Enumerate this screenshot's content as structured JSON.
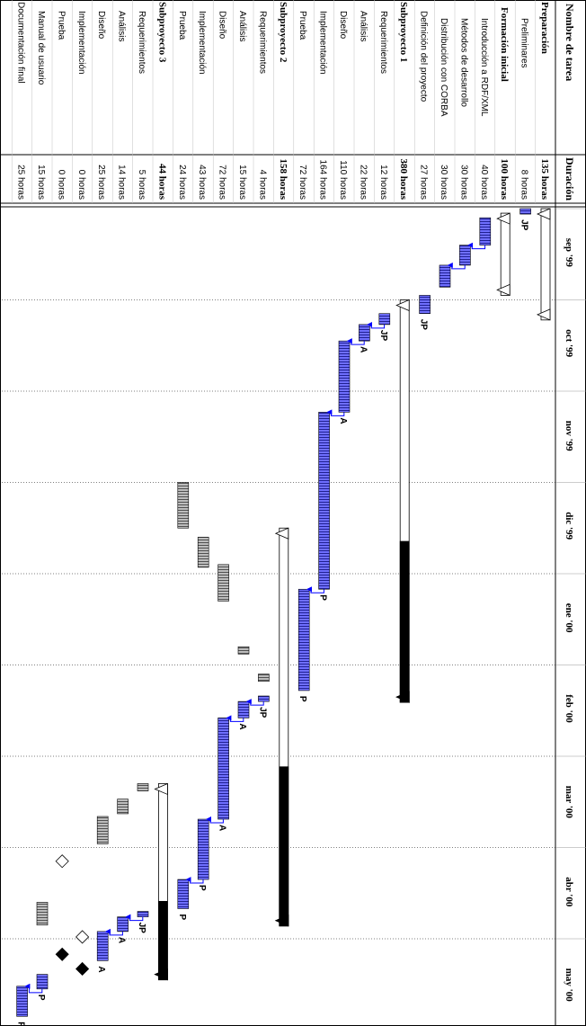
{
  "chart_data": {
    "type": "gantt",
    "columns": {
      "name": "Nombre de tarea",
      "duration": "Duración"
    },
    "months": [
      "sep '99",
      "oct '99",
      "nov '99",
      "dic '99",
      "ene '00",
      "feb '00",
      "mar '00",
      "abr '00",
      "may '00"
    ],
    "tasks": [
      {
        "name": "Preparación",
        "duration": "135 horas",
        "summary": true,
        "start": 0.0,
        "end": 1.22
      },
      {
        "name": "Preliminares",
        "duration": "8 horas",
        "level": 2,
        "start": 0.0,
        "end": 0.06,
        "resource": "JP"
      },
      {
        "name": "Formación inicial",
        "duration": "100 horas",
        "summary": true,
        "level": 1,
        "start": 0.05,
        "end": 0.95
      },
      {
        "name": "Introducción a RDF/XML",
        "duration": "40 horas",
        "level": 2,
        "start": 0.1,
        "end": 0.4
      },
      {
        "name": "Métodos de desarrollo",
        "duration": "30 horas",
        "level": 2,
        "start": 0.4,
        "end": 0.62
      },
      {
        "name": "Distribución con CORBA",
        "duration": "30 horas",
        "level": 2,
        "start": 0.62,
        "end": 0.86
      },
      {
        "name": "Definición del proyecto",
        "duration": "27 horas",
        "level": 1,
        "start": 0.95,
        "end": 1.15,
        "resource": "JP"
      },
      {
        "name": "Subproyecto 1",
        "duration": "380 horas",
        "summary": true,
        "start": 1.0,
        "end": 5.41
      },
      {
        "name": "Requerimientos",
        "duration": "12 horas",
        "level": 1,
        "start": 1.15,
        "end": 1.27,
        "resource": "JP"
      },
      {
        "name": "Análisis",
        "duration": "22 horas",
        "level": 1,
        "start": 1.27,
        "end": 1.45,
        "resource": "A"
      },
      {
        "name": "Diseño",
        "duration": "110 horas",
        "level": 1,
        "start": 1.45,
        "end": 2.23,
        "resource": "A"
      },
      {
        "name": "Implementación",
        "duration": "164 horas",
        "level": 1,
        "start": 2.23,
        "end": 4.17,
        "resource": "P"
      },
      {
        "name": "Prueba",
        "duration": "72 horas",
        "level": 1,
        "start": 4.17,
        "end": 5.28,
        "resource": "P"
      },
      {
        "name": "Subproyecto 2",
        "duration": "158 horas",
        "summary": true,
        "start": 3.5,
        "end": 7.86
      },
      {
        "name": "Requerimientos",
        "duration": "4 horas",
        "level": 1,
        "start": 5.34,
        "end": 5.4,
        "resource": "JP"
      },
      {
        "name": "Análisis",
        "duration": "15 horas",
        "level": 1,
        "start": 5.4,
        "end": 5.58,
        "resource": "A"
      },
      {
        "name": "Diseño",
        "duration": "72 horas",
        "level": 1,
        "start": 5.58,
        "end": 6.69,
        "resource": "A"
      },
      {
        "name": "Implementación",
        "duration": "43 horas",
        "level": 1,
        "start": 6.69,
        "end": 7.35,
        "resource": "P"
      },
      {
        "name": "Prueba",
        "duration": "24 horas",
        "level": 1,
        "start": 7.35,
        "end": 7.67,
        "resource": "P"
      },
      {
        "name": "Subproyecto 3",
        "duration": "44 horas",
        "summary": true,
        "start": 6.3,
        "end": 8.45
      },
      {
        "name": "Requerimientos",
        "duration": "5 horas",
        "level": 1,
        "start": 7.7,
        "end": 7.76,
        "resource": "JP"
      },
      {
        "name": "Análisis",
        "duration": "14 horas",
        "level": 1,
        "start": 7.76,
        "end": 7.92,
        "resource": "A"
      },
      {
        "name": "Diseño",
        "duration": "25 horas",
        "level": 1,
        "start": 7.92,
        "end": 8.24,
        "resource": "A"
      },
      {
        "name": "Implementación",
        "duration": "0 horas",
        "level": 1,
        "milestone": true,
        "start": 8.33,
        "end": 8.33
      },
      {
        "name": "Prueba",
        "duration": "0 horas",
        "level": 1,
        "milestone": true,
        "start": 8.17,
        "end": 8.17
      },
      {
        "name": "Manual de usuario",
        "duration": "15 horas",
        "level": 1,
        "start": 8.39,
        "end": 8.55,
        "resource": "P"
      },
      {
        "name": "Documentación final",
        "duration": "25 horas",
        "level": 0,
        "start": 8.52,
        "end": 8.85,
        "resource": "P"
      }
    ],
    "shadow_bars": [
      {
        "row": 14,
        "start": 5.1,
        "end": 5.18
      },
      {
        "row": 15,
        "start": 4.8,
        "end": 4.88
      },
      {
        "row": 16,
        "start": 3.9,
        "end": 4.3
      },
      {
        "row": 17,
        "start": 3.6,
        "end": 3.93
      },
      {
        "row": 18,
        "start": 3.0,
        "end": 3.5
      },
      {
        "row": 20,
        "start": 6.3,
        "end": 6.38
      },
      {
        "row": 21,
        "start": 6.47,
        "end": 6.63
      },
      {
        "row": 22,
        "start": 6.66,
        "end": 6.96
      },
      {
        "row": 23,
        "start": 7.98,
        "end": 7.98,
        "milestone": true
      },
      {
        "row": 24,
        "start": 7.15,
        "end": 7.15,
        "milestone": true
      },
      {
        "row": 25,
        "start": 7.6,
        "end": 7.85
      }
    ],
    "colors": {
      "bar_fill": "#6666ff",
      "bar_stripe": "#000080",
      "shadow": "#808080",
      "summary_dark": "#000000",
      "summary_light": "#ffffff",
      "link": "#0000ff"
    }
  }
}
